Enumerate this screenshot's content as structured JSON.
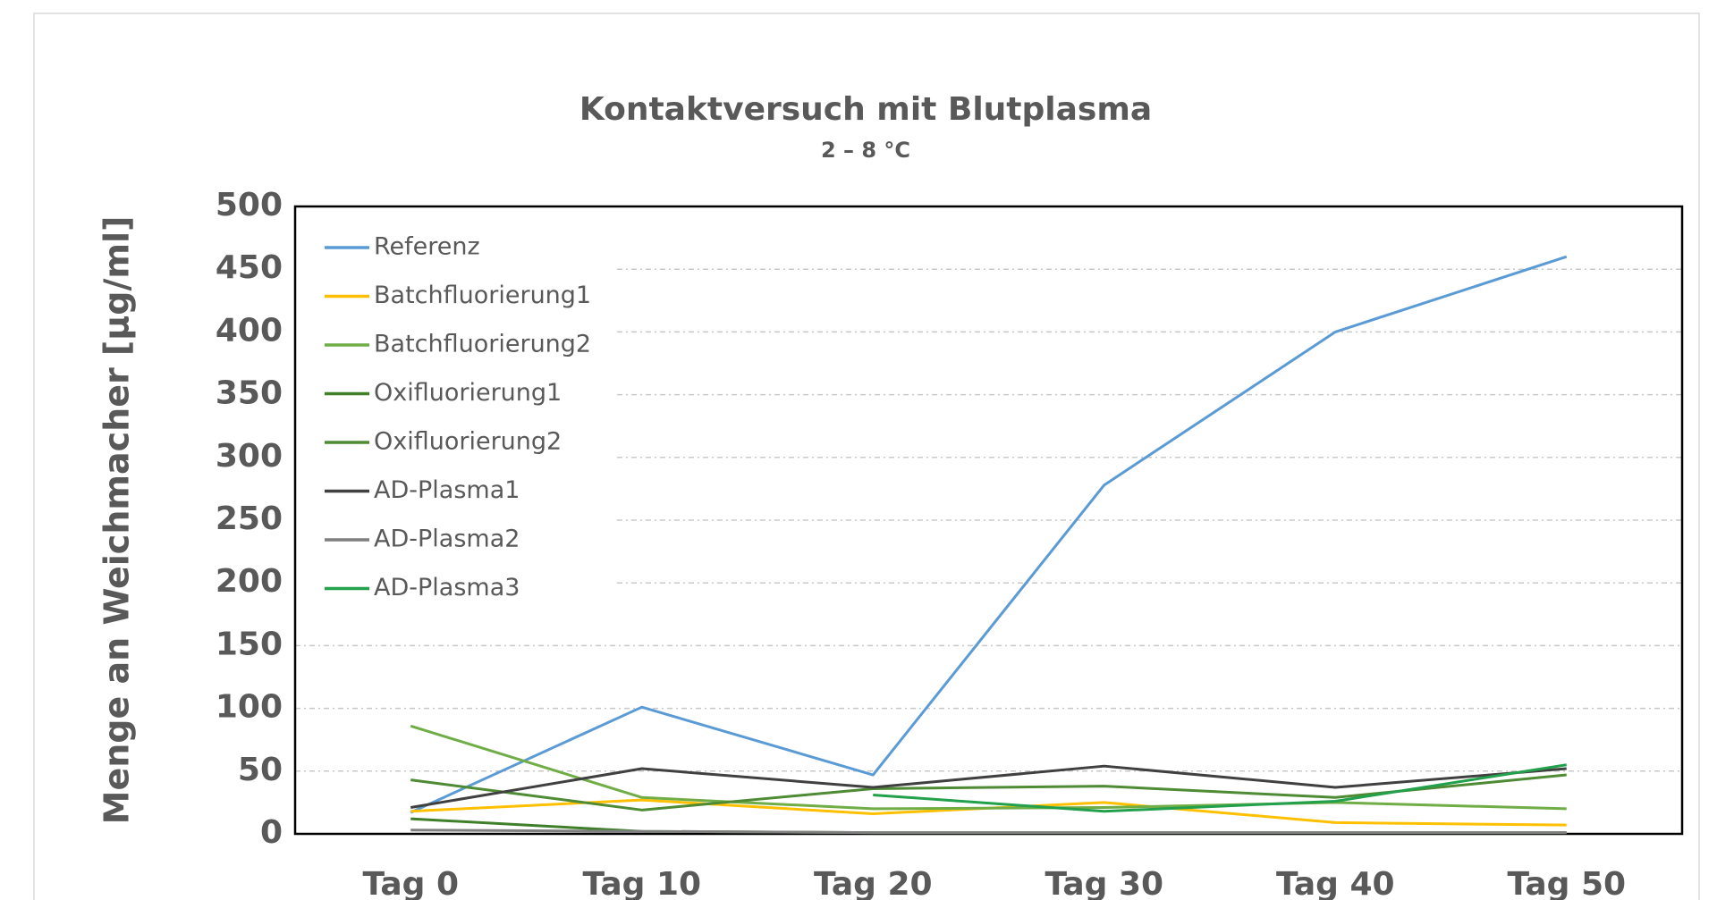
{
  "chart_data": {
    "type": "line",
    "title": "Kontaktversuch mit Blutplasma",
    "subtitle": "2 – 8 °C",
    "y_label": "Menge an Weichmacher [µg/ml]",
    "categories": [
      "Tag 0",
      "Tag 10",
      "Tag 20",
      "Tag 30",
      "Tag 40",
      "Tag 50"
    ],
    "series": [
      {
        "name": "Referenz",
        "color": "#5b9bd5",
        "values": [
          17,
          101,
          47,
          278,
          400,
          460
        ]
      },
      {
        "name": "Batchfluorierung1",
        "color": "#ffc000",
        "values": [
          18,
          27,
          16,
          25,
          9,
          7
        ]
      },
      {
        "name": "Batchfluorierung2",
        "color": "#70ad47",
        "values": [
          86,
          29,
          20,
          21,
          25,
          20
        ]
      },
      {
        "name": "Oxifluorierung1",
        "color": "#3f7f2a",
        "values": [
          12,
          2,
          1,
          1,
          1,
          1
        ]
      },
      {
        "name": "Oxifluorierung2",
        "color": "#4e8b34",
        "values": [
          43,
          19,
          36,
          38,
          29,
          47
        ]
      },
      {
        "name": "AD-Plasma1",
        "color": "#404040",
        "values": [
          21,
          52,
          37,
          54,
          37,
          52
        ]
      },
      {
        "name": "AD-Plasma2",
        "color": "#7f7f7f",
        "values": [
          3,
          2,
          1,
          1,
          1,
          1
        ]
      },
      {
        "name": "AD-Plasma3",
        "color": "#22a04b",
        "values": [
          null,
          null,
          31,
          18,
          26,
          55
        ]
      }
    ],
    "ylim": [
      0,
      500
    ],
    "yticks": [
      0,
      50,
      100,
      150,
      200,
      250,
      300,
      350,
      400,
      450,
      500
    ],
    "grid": true,
    "legend": "top-left"
  }
}
